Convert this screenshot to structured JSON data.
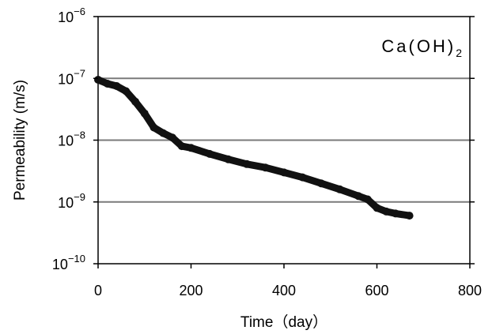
{
  "chart_data": {
    "type": "scatter",
    "xlabel": "Time（day）",
    "ylabel": "Permeability (m/s)",
    "annotation": {
      "base": "Ca(OH)",
      "sub": "2"
    },
    "xlim": [
      0,
      800
    ],
    "ylim": [
      1e-10,
      1e-06
    ],
    "y_scale": "log",
    "grid": "horizontal",
    "x_ticks": [
      {
        "value": 0,
        "label": "0"
      },
      {
        "value": 200,
        "label": "200"
      },
      {
        "value": 400,
        "label": "400"
      },
      {
        "value": 600,
        "label": "600"
      },
      {
        "value": 800,
        "label": "800"
      }
    ],
    "y_ticks": [
      {
        "value": 1e-10,
        "base": "10",
        "exp": "−10"
      },
      {
        "value": 1e-09,
        "base": "10",
        "exp": "−9"
      },
      {
        "value": 1e-08,
        "base": "10",
        "exp": "−8"
      },
      {
        "value": 1e-07,
        "base": "10",
        "exp": "−7"
      },
      {
        "value": 1e-06,
        "base": "10",
        "exp": "−6"
      }
    ],
    "series": [
      {
        "color": "#111111",
        "x": [
          0,
          20,
          40,
          60,
          80,
          100,
          120,
          140,
          160,
          180,
          200,
          240,
          280,
          320,
          360,
          400,
          440,
          480,
          520,
          560,
          580,
          600,
          620,
          640,
          670
        ],
        "y": [
          9.5e-08,
          8.2e-08,
          7.5e-08,
          6.2e-08,
          4.2e-08,
          2.7e-08,
          1.6e-08,
          1.3e-08,
          1.1e-08,
          8e-09,
          7.5e-09,
          6e-09,
          4.9e-09,
          4.1e-09,
          3.6e-09,
          3e-09,
          2.5e-09,
          2e-09,
          1.6e-09,
          1.25e-09,
          1.1e-09,
          8e-10,
          7e-10,
          6.5e-10,
          6e-10
        ]
      }
    ]
  }
}
